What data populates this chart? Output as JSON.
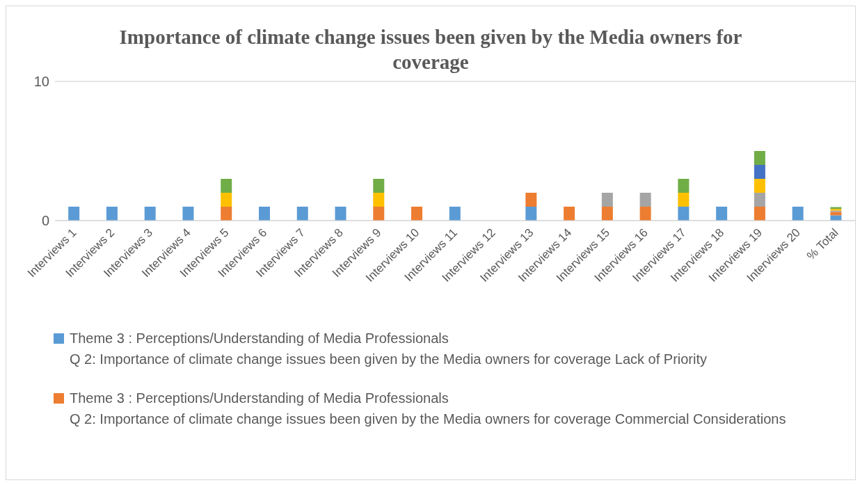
{
  "chart_data": {
    "type": "bar",
    "title": "Importance of climate change issues been given by the Media owners for coverage",
    "categories": [
      "Interviews 1",
      "Interviews 2",
      "Interviews 3",
      "Interviews 4",
      "Interviews 5",
      "Interviews 6",
      "Interviews 7",
      "Interviews 8",
      "Interviews 9",
      "Interviews 10",
      "Interviews 11",
      "Interviews 12",
      "Interviews 13",
      "Interviews 14",
      "Interviews 15",
      "Interviews 16",
      "Interviews 17",
      "Interviews 18",
      "Interviews 19",
      "Interviews 20",
      "% Total"
    ],
    "stacked": true,
    "series": [
      {
        "name": "Theme 3 : Perceptions/Understanding of Media Professionals\nQ 2: Importance of climate change issues been given by the Media owners for coverage Lack of Priority",
        "color": "#5b9bd5",
        "values": [
          1,
          1,
          1,
          1,
          null,
          1,
          1,
          1,
          null,
          null,
          1,
          null,
          1,
          null,
          null,
          null,
          1,
          1,
          null,
          1,
          0.38
        ]
      },
      {
        "name": "Theme 3 : Perceptions/Understanding of Media Professionals\nQ 2: Importance of climate change issues been given by the Media owners for coverage Commercial Considerations",
        "color": "#ed7d31",
        "values": [
          null,
          null,
          null,
          null,
          1,
          null,
          null,
          null,
          1,
          1,
          null,
          null,
          1,
          1,
          1,
          1,
          null,
          null,
          1,
          null,
          0.25
        ]
      },
      {
        "color": "#a5a5a5",
        "values": [
          null,
          null,
          null,
          null,
          null,
          null,
          null,
          null,
          null,
          null,
          null,
          null,
          null,
          null,
          1,
          1,
          null,
          null,
          1,
          null,
          0.09
        ]
      },
      {
        "color": "#ffc000",
        "values": [
          null,
          null,
          null,
          null,
          1,
          null,
          null,
          null,
          1,
          null,
          null,
          null,
          null,
          null,
          null,
          null,
          1,
          null,
          1,
          null,
          0.12
        ]
      },
      {
        "color": "#4472c4",
        "values": [
          null,
          null,
          null,
          null,
          null,
          null,
          null,
          null,
          null,
          null,
          null,
          null,
          null,
          null,
          null,
          null,
          null,
          null,
          1,
          null,
          null
        ]
      },
      {
        "color": "#70ad47",
        "values": [
          null,
          null,
          null,
          null,
          1,
          null,
          null,
          null,
          1,
          null,
          null,
          null,
          null,
          null,
          null,
          null,
          1,
          null,
          1,
          null,
          0.13
        ]
      }
    ],
    "ylim": [
      0,
      10
    ],
    "yticks": [
      0,
      10
    ],
    "grid": "y",
    "legend": "bottom"
  }
}
